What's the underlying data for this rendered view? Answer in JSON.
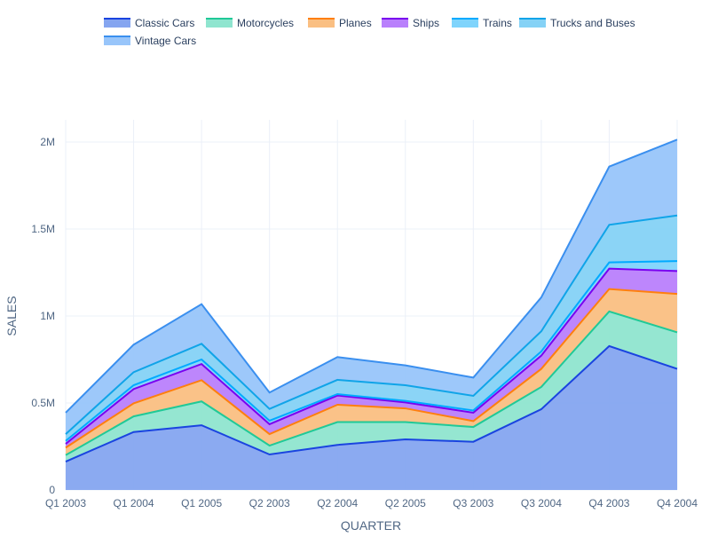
{
  "chart_data": {
    "type": "area",
    "stacked": true,
    "title": "",
    "xlabel": "QUARTER",
    "ylabel": "SALES",
    "categories": [
      "Q1 2003",
      "Q1 2004",
      "Q1 2005",
      "Q2 2003",
      "Q2 2004",
      "Q2 2005",
      "Q3 2003",
      "Q3 2004",
      "Q4 2003",
      "Q4 2004"
    ],
    "ylim": [
      0,
      2000000
    ],
    "yticks": [
      0,
      500000,
      1000000,
      1500000,
      2000000
    ],
    "ytick_labels": [
      "0",
      "0.5M",
      "1M",
      "1.5M",
      "2M"
    ],
    "grid": true,
    "legend_position": "top",
    "series": [
      {
        "name": "Classic Cars",
        "line": "#1a44e0",
        "fill": "#85a5f0",
        "values": [
          163000,
          333000,
          372000,
          204000,
          259000,
          291000,
          277000,
          464000,
          827000,
          696000
        ]
      },
      {
        "name": "Motorcycles",
        "line": "#20c997",
        "fill": "#8fe5cf",
        "values": [
          37000,
          90000,
          137000,
          51000,
          131000,
          99000,
          85000,
          128000,
          199000,
          210000
        ]
      },
      {
        "name": "Planes",
        "line": "#ff7f0e",
        "fill": "#fabf82",
        "values": [
          43000,
          75000,
          122000,
          66000,
          100000,
          79000,
          34000,
          104000,
          129000,
          221000
        ]
      },
      {
        "name": "Ships",
        "line": "#7a00f0",
        "fill": "#b980fc",
        "values": [
          22000,
          82000,
          93000,
          57000,
          53000,
          34000,
          48000,
          76000,
          117000,
          131000
        ]
      },
      {
        "name": "Trains",
        "line": "#00aaff",
        "fill": "#7fd4fc",
        "values": [
          17000,
          22000,
          26000,
          20000,
          8000,
          9000,
          13000,
          24000,
          36000,
          58000
        ]
      },
      {
        "name": "Trucks and Buses",
        "line": "#10a4e8",
        "fill": "#85d2f6",
        "values": [
          39000,
          75000,
          90000,
          68000,
          82000,
          90000,
          84000,
          116000,
          216000,
          262000
        ]
      },
      {
        "name": "Vintage Cars",
        "line": "#3a8fef",
        "fill": "#98c5fa",
        "values": [
          123000,
          158000,
          228000,
          94000,
          131000,
          114000,
          105000,
          195000,
          335000,
          436000
        ]
      }
    ]
  }
}
